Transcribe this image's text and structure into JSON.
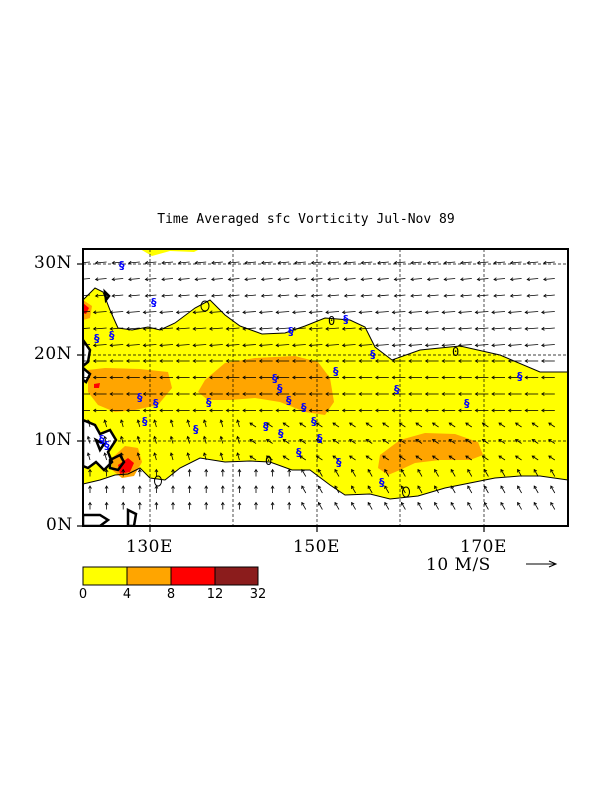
{
  "title": "Time Averaged sfc Vorticity  Jul-Nov  89",
  "lat_labels": [
    "30N",
    "20N",
    "10N",
    "0N"
  ],
  "lon_labels": [
    "130E",
    "150E",
    "170E"
  ],
  "vector_scale": {
    "label": "10 M/S"
  },
  "contour_label": "0",
  "colorbar": {
    "ticks": [
      "0",
      "4",
      "8",
      "12",
      "32"
    ],
    "colors": [
      "#ffff00",
      "#ffa500",
      "#ff0000",
      "#8b1c1c"
    ]
  },
  "colors": {
    "land_outline": "#000000",
    "storm_symbol": "#0000ff",
    "grid": "#000000"
  }
}
